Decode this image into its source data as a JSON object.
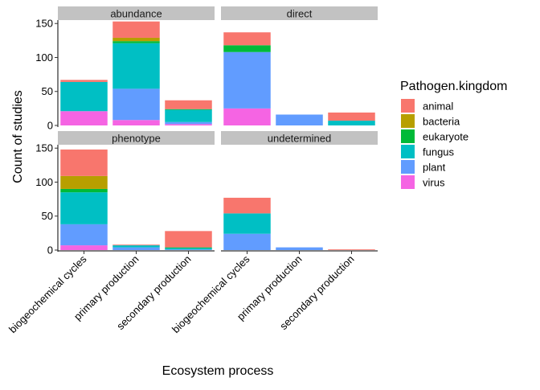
{
  "chart_data": {
    "type": "bar",
    "stacked": true,
    "facet_layout": "2x2",
    "x_label": "Ecosystem process",
    "y_label": "Count of studies",
    "ylim": [
      0,
      155
    ],
    "y_ticks": [
      0,
      50,
      100,
      150
    ],
    "categories": [
      "biogeochemical cycles",
      "primary production",
      "secondary production"
    ],
    "legend": {
      "title": "Pathogen.kingdom",
      "position": "right",
      "items": [
        {
          "name": "animal",
          "color": "#F8766D"
        },
        {
          "name": "bacteria",
          "color": "#B79F00"
        },
        {
          "name": "eukaryote",
          "color": "#00BA38"
        },
        {
          "name": "fungus",
          "color": "#00BFC4"
        },
        {
          "name": "plant",
          "color": "#619CFF"
        },
        {
          "name": "virus",
          "color": "#F564E3"
        }
      ]
    },
    "stack_order_bottom_to_top": [
      "virus",
      "plant",
      "fungus",
      "eukaryote",
      "bacteria",
      "animal"
    ],
    "facets": [
      {
        "name": "abundance",
        "values": {
          "biogeochemical cycles": {
            "virus": 21,
            "plant": 0,
            "fungus": 43,
            "eukaryote": 0,
            "bacteria": 0,
            "animal": 3
          },
          "primary production": {
            "virus": 8,
            "plant": 46,
            "fungus": 67,
            "eukaryote": 3,
            "bacteria": 5,
            "animal": 24
          },
          "secondary production": {
            "virus": 2,
            "plant": 3,
            "fungus": 18,
            "eukaryote": 1,
            "bacteria": 0,
            "animal": 13
          }
        }
      },
      {
        "name": "direct",
        "values": {
          "biogeochemical cycles": {
            "virus": 25,
            "plant": 83,
            "fungus": 0,
            "eukaryote": 10,
            "bacteria": 0,
            "animal": 19
          },
          "primary production": {
            "virus": 0,
            "plant": 16,
            "fungus": 0,
            "eukaryote": 0,
            "bacteria": 0,
            "animal": 0
          },
          "secondary production": {
            "virus": 0,
            "plant": 0,
            "fungus": 7,
            "eukaryote": 0,
            "bacteria": 0,
            "animal": 12
          }
        }
      },
      {
        "name": "phenotype",
        "values": {
          "biogeochemical cycles": {
            "virus": 7,
            "plant": 31,
            "fungus": 47,
            "eukaryote": 5,
            "bacteria": 19,
            "animal": 39
          },
          "primary production": {
            "virus": 0,
            "plant": 4,
            "fungus": 3,
            "eukaryote": 0,
            "bacteria": 0,
            "animal": 1
          },
          "secondary production": {
            "virus": 0,
            "plant": 1,
            "fungus": 2,
            "eukaryote": 1,
            "bacteria": 0,
            "animal": 24
          }
        }
      },
      {
        "name": "undetermined",
        "values": {
          "biogeochemical cycles": {
            "virus": 0,
            "plant": 24,
            "fungus": 30,
            "eukaryote": 0,
            "bacteria": 0,
            "animal": 23
          },
          "primary production": {
            "virus": 0,
            "plant": 4,
            "fungus": 0,
            "eukaryote": 0,
            "bacteria": 0,
            "animal": 0
          },
          "secondary production": {
            "virus": 0,
            "plant": 0,
            "fungus": 0,
            "eukaryote": 0,
            "bacteria": 0,
            "animal": 1
          }
        }
      }
    ]
  }
}
